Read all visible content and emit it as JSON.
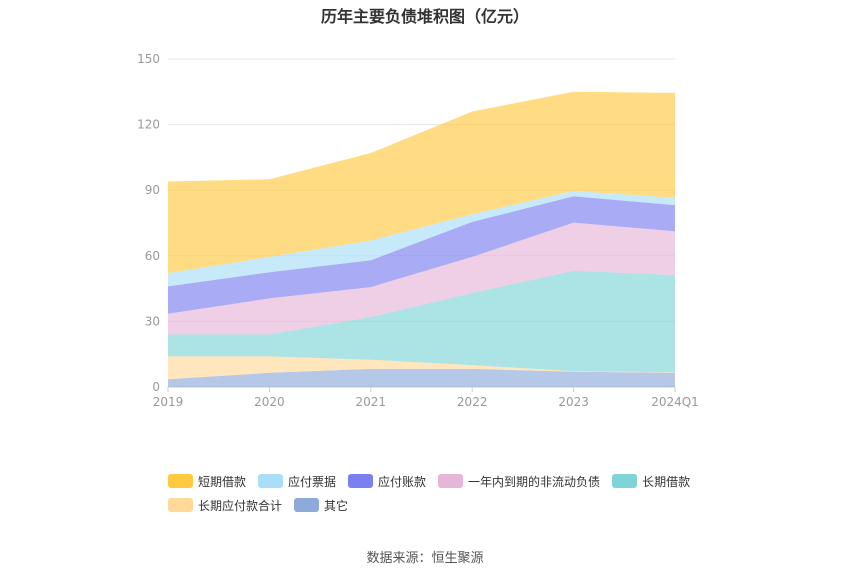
{
  "chart_data": {
    "type": "area",
    "stacked": true,
    "title": "历年主要负债堆积图（亿元）",
    "categories": [
      "2019",
      "2020",
      "2021",
      "2022",
      "2023",
      "2024Q1"
    ],
    "ylim": [
      0,
      150
    ],
    "yticks": [
      0,
      30,
      60,
      90,
      120,
      150
    ],
    "grid": true,
    "legend_position": "bottom",
    "series": [
      {
        "name": "其它",
        "color": "#8eaadb",
        "values": [
          3.5,
          6.5,
          8.3,
          8.3,
          7.0,
          6.5
        ]
      },
      {
        "name": "长期应付款合计",
        "color": "#ffd89a",
        "values": [
          10.5,
          7.5,
          4.2,
          1.7,
          0.2,
          0.2
        ]
      },
      {
        "name": "长期借款",
        "color": "#7fd4d6",
        "values": [
          10.0,
          10.0,
          19.5,
          33.0,
          46.0,
          44.5
        ]
      },
      {
        "name": "一年内到期的非流动负债",
        "color": "#e6b6d8",
        "values": [
          9.5,
          16.5,
          13.7,
          16.5,
          22.0,
          20.0
        ]
      },
      {
        "name": "应付账款",
        "color": "#7b7ff0",
        "values": [
          12.5,
          12.0,
          12.3,
          16.0,
          12.0,
          12.0
        ]
      },
      {
        "name": "应付票据",
        "color": "#a9def8",
        "values": [
          6.0,
          7.0,
          9.0,
          3.5,
          2.5,
          3.3
        ]
      },
      {
        "name": "短期借款",
        "color": "#ffc940",
        "values": [
          42.0,
          35.5,
          40.0,
          47.0,
          45.3,
          48.0
        ]
      }
    ]
  },
  "legend": {
    "items": [
      {
        "name": "短期借款",
        "color": "#ffc940"
      },
      {
        "name": "应付票据",
        "color": "#a9def8"
      },
      {
        "name": "应付账款",
        "color": "#7b7ff0"
      },
      {
        "name": "一年内到期的非流动负债",
        "color": "#e6b6d8"
      },
      {
        "name": "长期借款",
        "color": "#7fd4d6"
      },
      {
        "name": "长期应付款合计",
        "color": "#ffd89a"
      },
      {
        "name": "其它",
        "color": "#8eaadb"
      }
    ]
  },
  "source": "数据来源：恒生聚源"
}
